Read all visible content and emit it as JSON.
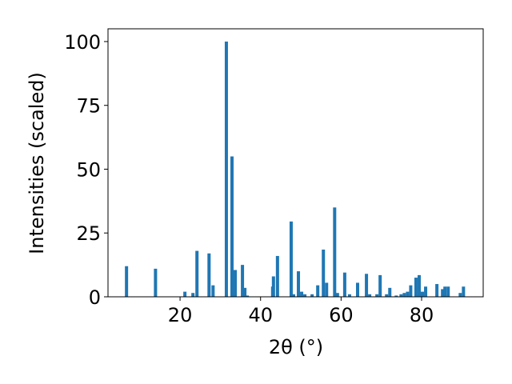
{
  "chart_data": {
    "type": "bar",
    "x_label": "2θ (°)",
    "y_label": "Intensities (scaled)",
    "color": "#1f77b4",
    "x": [
      6.7,
      13.9,
      21.2,
      23.2,
      24.2,
      27.2,
      28.2,
      31.5,
      32.9,
      33.7,
      35.5,
      36.1,
      36.7,
      43.0,
      43.2,
      44.2,
      47.6,
      48.2,
      49.4,
      50.2,
      51.0,
      52.8,
      54.2,
      55.6,
      56.4,
      58.4,
      59.1,
      60.9,
      62.1,
      64.1,
      66.3,
      67.1,
      68.9,
      69.7,
      71.3,
      72.1,
      73.7,
      74.9,
      75.7,
      76.5,
      77.3,
      78.6,
      79.4,
      80.2,
      81.0,
      83.8,
      85.2,
      85.8,
      86.6,
      89.6,
      90.4
    ],
    "values": [
      12,
      11,
      2,
      1.5,
      18,
      17,
      4.5,
      100,
      55,
      10.5,
      12.5,
      3.5,
      0.5,
      4,
      8,
      16,
      29.5,
      1,
      10,
      2,
      1,
      1,
      4.5,
      18.5,
      5.5,
      35,
      1.5,
      9.5,
      1,
      5.5,
      9,
      1,
      1,
      8.5,
      1,
      3.5,
      0.5,
      1,
      1.5,
      2,
      4.5,
      7.5,
      8.5,
      2,
      4,
      5,
      3,
      4,
      4,
      1.5,
      4
    ],
    "xlim": [
      2.1,
      95.3
    ],
    "ylim": [
      0,
      105
    ],
    "xticks": [
      20,
      40,
      60,
      80
    ],
    "yticks": [
      0,
      25,
      50,
      75,
      100
    ]
  }
}
